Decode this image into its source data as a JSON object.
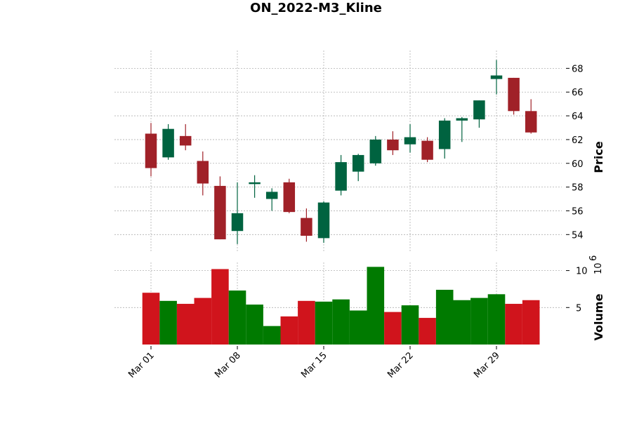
{
  "chart_data": {
    "type": "candlestick",
    "title": "ON_2022-M3_Kline",
    "price_axis": {
      "label": "Price",
      "ylim": [
        52.6,
        69.5
      ],
      "ticks": [
        54,
        56,
        58,
        60,
        62,
        64,
        66,
        68
      ]
    },
    "volume_axis": {
      "label": "Volume",
      "multiplier_label": "10",
      "multiplier_exp": "6",
      "ylim": [
        0,
        11.1
      ],
      "ticks": [
        5,
        10
      ]
    },
    "x_ticks": [
      {
        "index": 0,
        "label": "Mar 01"
      },
      {
        "index": 5,
        "label": "Mar 08"
      },
      {
        "index": 10,
        "label": "Mar 15"
      },
      {
        "index": 15,
        "label": "Mar 22"
      },
      {
        "index": 20,
        "label": "Mar 29"
      }
    ],
    "colors": {
      "up": "#006340",
      "down": "#a02128",
      "volume_up": "#007a00",
      "volume_down": "#d0141c"
    },
    "grid": true,
    "candles": [
      {
        "date": "Mar 01",
        "open": 62.5,
        "high": 63.4,
        "low": 58.9,
        "close": 59.6,
        "volume": 7.0
      },
      {
        "date": "Mar 02",
        "open": 60.5,
        "high": 63.3,
        "low": 60.3,
        "close": 62.9,
        "volume": 5.9
      },
      {
        "date": "Mar 03",
        "open": 62.3,
        "high": 63.3,
        "low": 61.1,
        "close": 61.5,
        "volume": 5.5
      },
      {
        "date": "Mar 04",
        "open": 60.2,
        "high": 61.0,
        "low": 57.3,
        "close": 58.3,
        "volume": 6.3
      },
      {
        "date": "Mar 07",
        "open": 58.1,
        "high": 58.9,
        "low": 53.6,
        "close": 53.6,
        "volume": 10.2
      },
      {
        "date": "Mar 08",
        "open": 54.3,
        "high": 58.4,
        "low": 53.2,
        "close": 55.8,
        "volume": 7.3
      },
      {
        "date": "Mar 09",
        "open": 58.3,
        "high": 59.0,
        "low": 57.1,
        "close": 58.4,
        "volume": 5.4
      },
      {
        "date": "Mar 10",
        "open": 57.0,
        "high": 57.9,
        "low": 56.0,
        "close": 57.6,
        "volume": 2.5
      },
      {
        "date": "Mar 11",
        "open": 58.4,
        "high": 58.7,
        "low": 55.8,
        "close": 55.9,
        "volume": 3.8
      },
      {
        "date": "Mar 14",
        "open": 55.4,
        "high": 56.2,
        "low": 53.4,
        "close": 53.9,
        "volume": 5.9
      },
      {
        "date": "Mar 15",
        "open": 53.7,
        "high": 56.8,
        "low": 53.3,
        "close": 56.7,
        "volume": 5.8
      },
      {
        "date": "Mar 16",
        "open": 57.7,
        "high": 60.7,
        "low": 57.3,
        "close": 60.1,
        "volume": 6.1
      },
      {
        "date": "Mar 17",
        "open": 59.3,
        "high": 60.8,
        "low": 58.5,
        "close": 60.7,
        "volume": 4.6
      },
      {
        "date": "Mar 18",
        "open": 60.0,
        "high": 62.3,
        "low": 59.8,
        "close": 62.0,
        "volume": 10.5
      },
      {
        "date": "Mar 21",
        "open": 62.0,
        "high": 62.7,
        "low": 60.7,
        "close": 61.1,
        "volume": 4.4
      },
      {
        "date": "Mar 22",
        "open": 61.6,
        "high": 63.3,
        "low": 60.9,
        "close": 62.2,
        "volume": 5.3
      },
      {
        "date": "Mar 23",
        "open": 61.9,
        "high": 62.2,
        "low": 60.1,
        "close": 60.3,
        "volume": 3.6
      },
      {
        "date": "Mar 24",
        "open": 61.2,
        "high": 63.8,
        "low": 60.4,
        "close": 63.6,
        "volume": 7.4
      },
      {
        "date": "Mar 25",
        "open": 63.6,
        "high": 63.9,
        "low": 61.8,
        "close": 63.8,
        "volume": 6.0
      },
      {
        "date": "Mar 28",
        "open": 63.7,
        "high": 65.3,
        "low": 63.0,
        "close": 65.3,
        "volume": 6.3
      },
      {
        "date": "Mar 29",
        "open": 67.1,
        "high": 68.7,
        "low": 65.8,
        "close": 67.4,
        "volume": 6.8
      },
      {
        "date": "Mar 30",
        "open": 67.2,
        "high": 67.2,
        "low": 64.1,
        "close": 64.4,
        "volume": 5.5
      },
      {
        "date": "Mar 31",
        "open": 64.4,
        "high": 65.4,
        "low": 62.5,
        "close": 62.6,
        "volume": 6.0
      }
    ]
  }
}
